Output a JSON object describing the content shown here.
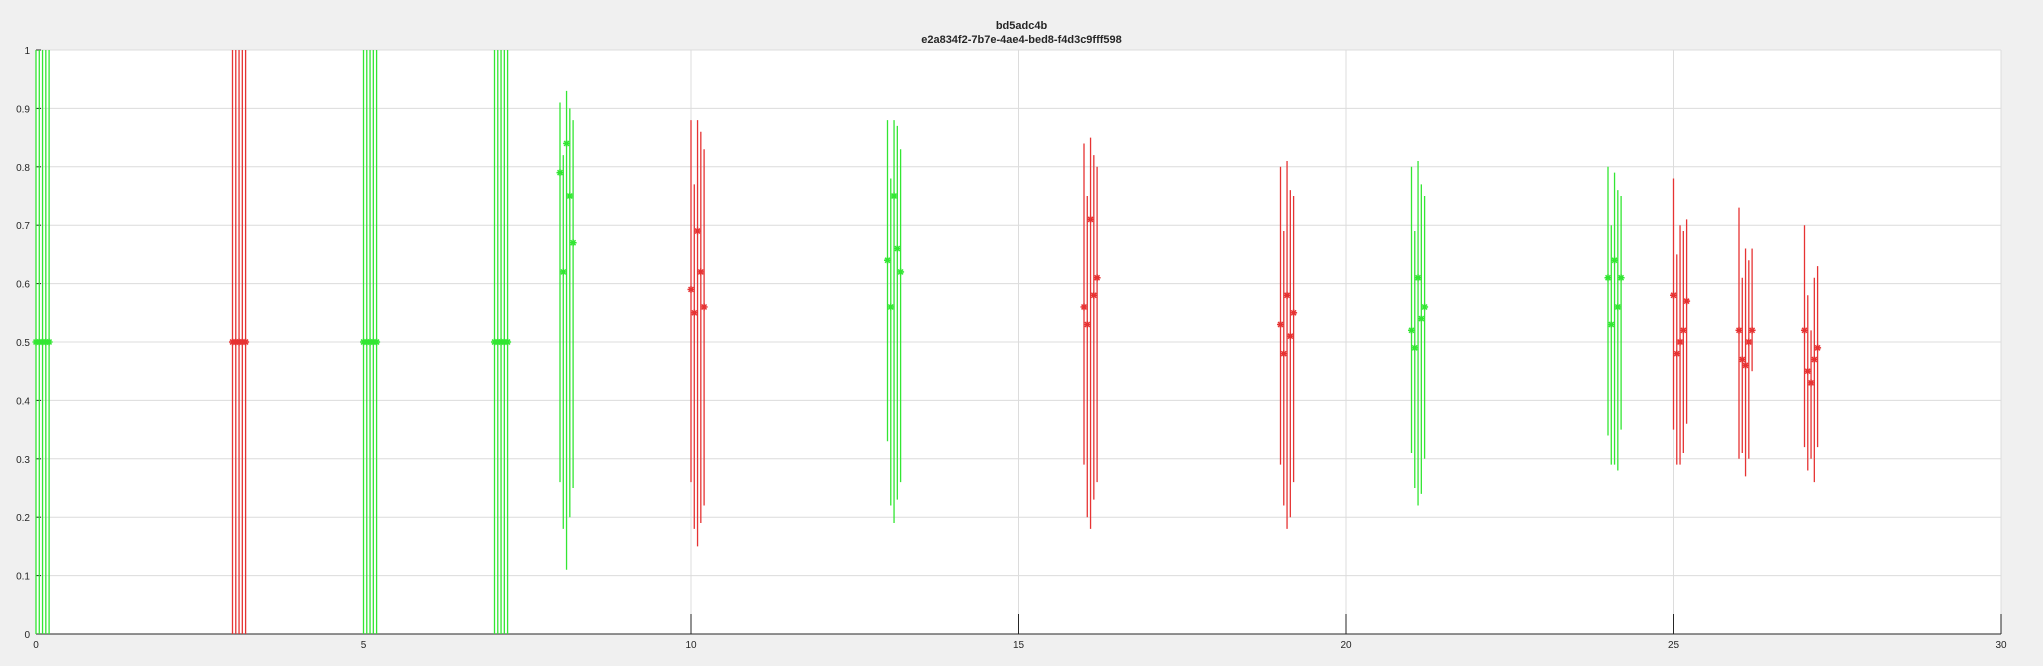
{
  "chart_data": {
    "type": "scatter",
    "title": "bd5adc4b",
    "subtitle": "e2a834f2-7b7e-4ae4-bed8-f4d3c9fff598",
    "xlabel": "",
    "ylabel": "",
    "xlim": [
      0,
      30
    ],
    "ylim": [
      0,
      1
    ],
    "xticks": [
      0,
      5,
      10,
      15,
      20,
      25,
      30
    ],
    "yticks": [
      0,
      0.1,
      0.2,
      0.3,
      0.4,
      0.5,
      0.6,
      0.7,
      0.8,
      0.9,
      1
    ],
    "grid": true,
    "colors": {
      "green": "#33e633",
      "red": "#e63333",
      "background": "#f0f0f0",
      "axes_background": "#ffffff",
      "grid": "#dcdcdc",
      "axis": "#262626"
    },
    "groups": [
      {
        "color": "green",
        "points": [
          {
            "x": 0.0,
            "y": 0.5,
            "lo": 0.0,
            "hi": 1.0
          },
          {
            "x": 0.05,
            "y": 0.5,
            "lo": 0.0,
            "hi": 1.0
          },
          {
            "x": 0.1,
            "y": 0.5,
            "lo": 0.0,
            "hi": 1.0
          },
          {
            "x": 0.15,
            "y": 0.5,
            "lo": 0.0,
            "hi": 1.0
          },
          {
            "x": 0.2,
            "y": 0.5,
            "lo": 0.0,
            "hi": 1.0
          }
        ]
      },
      {
        "color": "red",
        "points": [
          {
            "x": 3.0,
            "y": 0.5,
            "lo": 0.0,
            "hi": 1.0
          },
          {
            "x": 3.05,
            "y": 0.5,
            "lo": 0.0,
            "hi": 1.0
          },
          {
            "x": 3.1,
            "y": 0.5,
            "lo": 0.0,
            "hi": 1.0
          },
          {
            "x": 3.15,
            "y": 0.5,
            "lo": 0.0,
            "hi": 1.0
          },
          {
            "x": 3.2,
            "y": 0.5,
            "lo": 0.0,
            "hi": 1.0
          }
        ]
      },
      {
        "color": "green",
        "points": [
          {
            "x": 5.0,
            "y": 0.5,
            "lo": 0.0,
            "hi": 1.0
          },
          {
            "x": 5.05,
            "y": 0.5,
            "lo": 0.0,
            "hi": 1.0
          },
          {
            "x": 5.1,
            "y": 0.5,
            "lo": 0.0,
            "hi": 1.0
          },
          {
            "x": 5.15,
            "y": 0.5,
            "lo": 0.0,
            "hi": 1.0
          },
          {
            "x": 5.2,
            "y": 0.5,
            "lo": 0.0,
            "hi": 1.0
          }
        ]
      },
      {
        "color": "green",
        "points": [
          {
            "x": 7.0,
            "y": 0.5,
            "lo": 0.0,
            "hi": 1.0
          },
          {
            "x": 7.05,
            "y": 0.5,
            "lo": 0.0,
            "hi": 1.0
          },
          {
            "x": 7.1,
            "y": 0.5,
            "lo": 0.0,
            "hi": 1.0
          },
          {
            "x": 7.15,
            "y": 0.5,
            "lo": 0.0,
            "hi": 1.0
          },
          {
            "x": 7.2,
            "y": 0.5,
            "lo": 0.0,
            "hi": 1.0
          }
        ]
      },
      {
        "color": "green",
        "points": [
          {
            "x": 8.0,
            "y": 0.79,
            "lo": 0.26,
            "hi": 0.91
          },
          {
            "x": 8.05,
            "y": 0.62,
            "lo": 0.18,
            "hi": 0.82
          },
          {
            "x": 8.1,
            "y": 0.84,
            "lo": 0.11,
            "hi": 0.93
          },
          {
            "x": 8.15,
            "y": 0.75,
            "lo": 0.2,
            "hi": 0.9
          },
          {
            "x": 8.2,
            "y": 0.67,
            "lo": 0.25,
            "hi": 0.88
          }
        ]
      },
      {
        "color": "red",
        "points": [
          {
            "x": 10.0,
            "y": 0.59,
            "lo": 0.26,
            "hi": 0.88
          },
          {
            "x": 10.05,
            "y": 0.55,
            "lo": 0.18,
            "hi": 0.77
          },
          {
            "x": 10.1,
            "y": 0.69,
            "lo": 0.15,
            "hi": 0.88
          },
          {
            "x": 10.15,
            "y": 0.62,
            "lo": 0.19,
            "hi": 0.86
          },
          {
            "x": 10.2,
            "y": 0.56,
            "lo": 0.22,
            "hi": 0.83
          }
        ]
      },
      {
        "color": "green",
        "points": [
          {
            "x": 13.0,
            "y": 0.64,
            "lo": 0.33,
            "hi": 0.88
          },
          {
            "x": 13.05,
            "y": 0.56,
            "lo": 0.22,
            "hi": 0.78
          },
          {
            "x": 13.1,
            "y": 0.75,
            "lo": 0.19,
            "hi": 0.88
          },
          {
            "x": 13.15,
            "y": 0.66,
            "lo": 0.23,
            "hi": 0.87
          },
          {
            "x": 13.2,
            "y": 0.62,
            "lo": 0.26,
            "hi": 0.83
          }
        ]
      },
      {
        "color": "red",
        "points": [
          {
            "x": 16.0,
            "y": 0.56,
            "lo": 0.29,
            "hi": 0.84
          },
          {
            "x": 16.05,
            "y": 0.53,
            "lo": 0.2,
            "hi": 0.75
          },
          {
            "x": 16.1,
            "y": 0.71,
            "lo": 0.18,
            "hi": 0.85
          },
          {
            "x": 16.15,
            "y": 0.58,
            "lo": 0.23,
            "hi": 0.82
          },
          {
            "x": 16.2,
            "y": 0.61,
            "lo": 0.26,
            "hi": 0.8
          }
        ]
      },
      {
        "color": "red",
        "points": [
          {
            "x": 19.0,
            "y": 0.53,
            "lo": 0.29,
            "hi": 0.8
          },
          {
            "x": 19.05,
            "y": 0.48,
            "lo": 0.22,
            "hi": 0.69
          },
          {
            "x": 19.1,
            "y": 0.58,
            "lo": 0.18,
            "hi": 0.81
          },
          {
            "x": 19.15,
            "y": 0.51,
            "lo": 0.2,
            "hi": 0.76
          },
          {
            "x": 19.2,
            "y": 0.55,
            "lo": 0.26,
            "hi": 0.75
          }
        ]
      },
      {
        "color": "green",
        "points": [
          {
            "x": 21.0,
            "y": 0.52,
            "lo": 0.31,
            "hi": 0.8
          },
          {
            "x": 21.05,
            "y": 0.49,
            "lo": 0.25,
            "hi": 0.69
          },
          {
            "x": 21.1,
            "y": 0.61,
            "lo": 0.22,
            "hi": 0.81
          },
          {
            "x": 21.15,
            "y": 0.54,
            "lo": 0.24,
            "hi": 0.77
          },
          {
            "x": 21.2,
            "y": 0.56,
            "lo": 0.3,
            "hi": 0.75
          }
        ]
      },
      {
        "color": "green",
        "points": [
          {
            "x": 24.0,
            "y": 0.61,
            "lo": 0.34,
            "hi": 0.8
          },
          {
            "x": 24.05,
            "y": 0.53,
            "lo": 0.29,
            "hi": 0.7
          },
          {
            "x": 24.1,
            "y": 0.64,
            "lo": 0.29,
            "hi": 0.79
          },
          {
            "x": 24.15,
            "y": 0.56,
            "lo": 0.28,
            "hi": 0.76
          },
          {
            "x": 24.2,
            "y": 0.61,
            "lo": 0.35,
            "hi": 0.75
          }
        ]
      },
      {
        "color": "red",
        "points": [
          {
            "x": 25.0,
            "y": 0.58,
            "lo": 0.35,
            "hi": 0.78
          },
          {
            "x": 25.05,
            "y": 0.48,
            "lo": 0.29,
            "hi": 0.65
          },
          {
            "x": 25.1,
            "y": 0.5,
            "lo": 0.29,
            "hi": 0.7
          },
          {
            "x": 25.15,
            "y": 0.52,
            "lo": 0.31,
            "hi": 0.69
          },
          {
            "x": 25.2,
            "y": 0.57,
            "lo": 0.36,
            "hi": 0.71
          }
        ]
      },
      {
        "color": "red",
        "points": [
          {
            "x": 26.0,
            "y": 0.52,
            "lo": 0.3,
            "hi": 0.73
          },
          {
            "x": 26.05,
            "y": 0.47,
            "lo": 0.31,
            "hi": 0.61
          },
          {
            "x": 26.1,
            "y": 0.46,
            "lo": 0.27,
            "hi": 0.66
          },
          {
            "x": 26.15,
            "y": 0.5,
            "lo": 0.3,
            "hi": 0.64
          },
          {
            "x": 26.2,
            "y": 0.52,
            "lo": 0.45,
            "hi": 0.66
          }
        ]
      },
      {
        "color": "red",
        "points": [
          {
            "x": 27.0,
            "y": 0.52,
            "lo": 0.32,
            "hi": 0.7
          },
          {
            "x": 27.05,
            "y": 0.45,
            "lo": 0.28,
            "hi": 0.58
          },
          {
            "x": 27.1,
            "y": 0.43,
            "lo": 0.3,
            "hi": 0.52
          },
          {
            "x": 27.15,
            "y": 0.47,
            "lo": 0.26,
            "hi": 0.61
          },
          {
            "x": 27.2,
            "y": 0.49,
            "lo": 0.32,
            "hi": 0.63
          }
        ]
      }
    ]
  }
}
